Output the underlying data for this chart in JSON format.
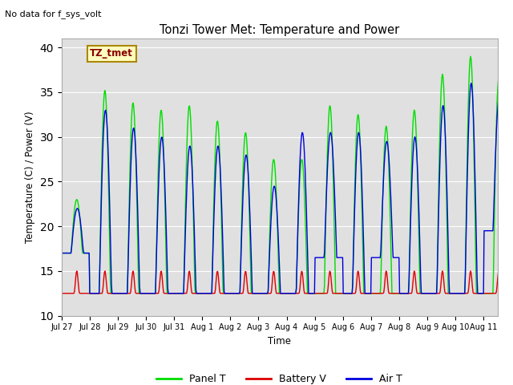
{
  "title": "Tonzi Tower Met: Temperature and Power",
  "ylabel": "Temperature (C) / Power (V)",
  "xlabel": "Time",
  "ylim": [
    10,
    41
  ],
  "yticks": [
    10,
    15,
    20,
    25,
    30,
    35,
    40
  ],
  "no_data_text": "No data for f_sys_volt",
  "label_text": "TZ_tmet",
  "plot_bg_color": "#e0e0e0",
  "fig_bg_color": "#ffffff",
  "panel_color": "#00dd00",
  "battery_color": "#dd0000",
  "air_color": "#0000dd",
  "xtick_labels": [
    "Jul 27",
    "Jul 28",
    "Jul 29",
    "Jul 30",
    "Jul 31",
    "Aug 1",
    "Aug 2",
    "Aug 3",
    "Aug 4",
    "Aug 5",
    "Aug 6",
    "Aug 7",
    "Aug 8",
    "Aug 9",
    "Aug 10",
    "Aug 11"
  ],
  "panel_peaks": [
    23.0,
    35.2,
    33.8,
    33.0,
    33.5,
    31.8,
    30.5,
    27.5,
    27.5,
    33.5,
    32.5,
    31.2,
    33.0,
    37.0,
    39.0,
    36.5
  ],
  "panel_mins": [
    17.0,
    12.5,
    12.5,
    12.5,
    12.5,
    12.5,
    12.5,
    12.5,
    12.5,
    12.5,
    12.5,
    12.5,
    12.5,
    12.5,
    12.5,
    12.5
  ],
  "air_peaks": [
    22.0,
    33.0,
    31.0,
    30.0,
    29.0,
    29.0,
    28.0,
    24.5,
    30.5,
    30.5,
    30.5,
    29.5,
    30.0,
    33.5,
    36.0,
    34.5
  ],
  "air_mins": [
    17.0,
    12.5,
    12.5,
    12.5,
    12.5,
    12.5,
    12.5,
    12.5,
    12.5,
    16.5,
    12.5,
    16.5,
    12.5,
    12.5,
    12.5,
    19.5
  ],
  "batt_baseline": 12.5,
  "batt_peak": 15.0,
  "n_days": 16,
  "hours_per_day": 48
}
